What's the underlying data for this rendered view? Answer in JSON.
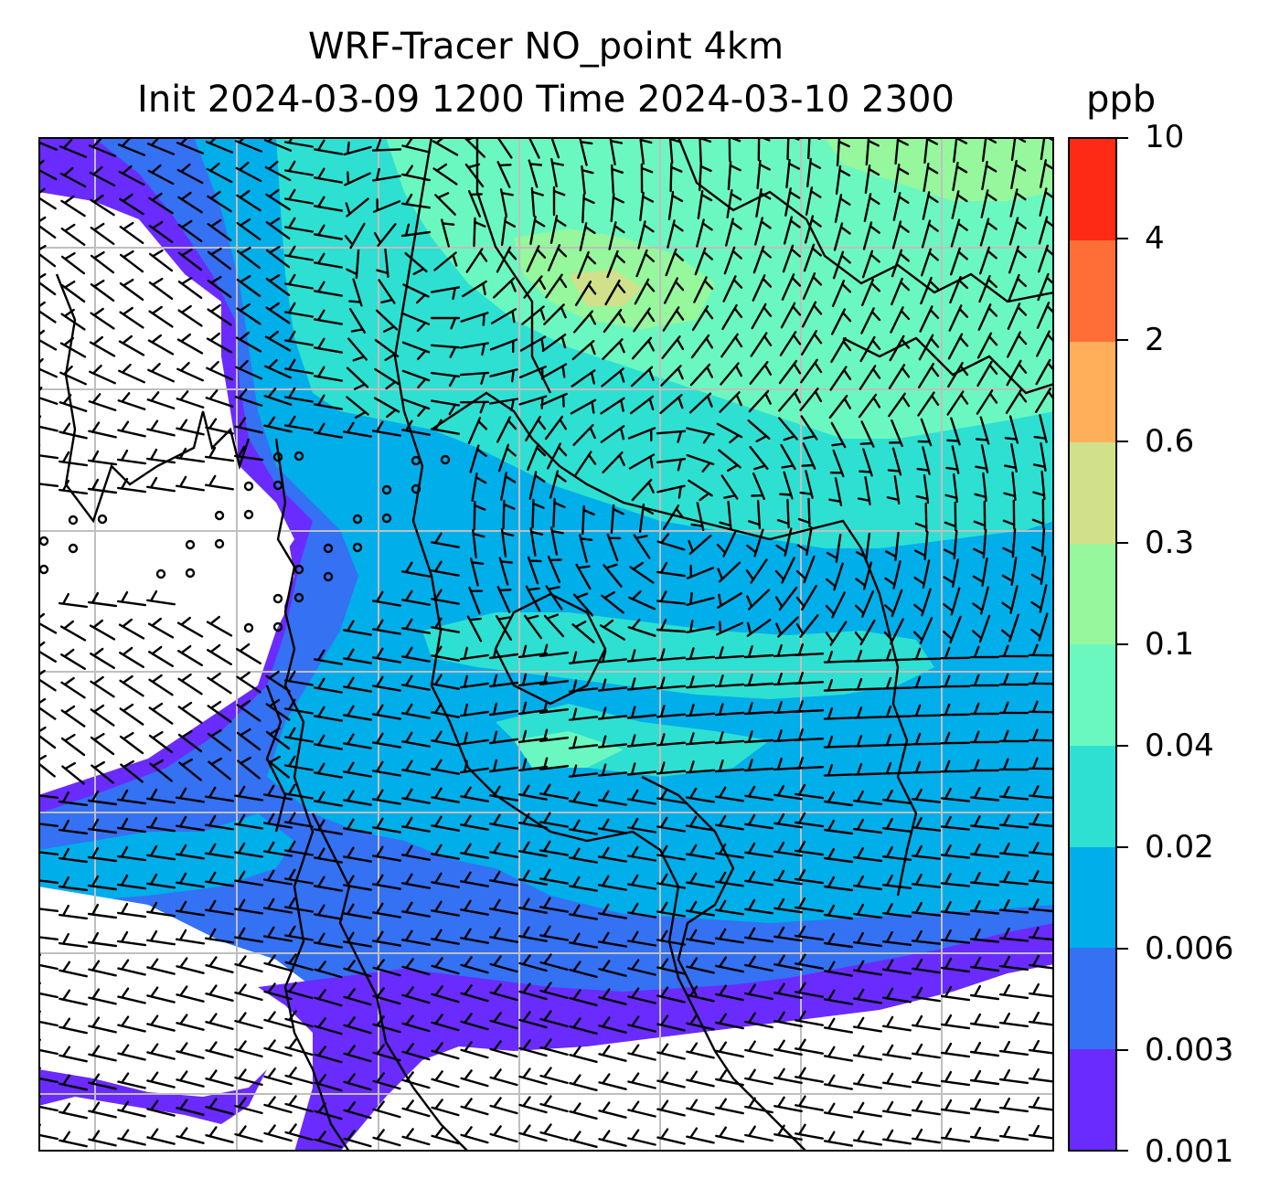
{
  "figure": {
    "title_line1": "WRF-Tracer NO_point 4km",
    "title_line2": "Init 2024-03-09 1200 Time 2024-03-10 2300",
    "units": "ppb"
  },
  "colorbar": {
    "levels": [
      "0.001",
      "0.003",
      "0.006",
      "0.02",
      "0.04",
      "0.1",
      "0.3",
      "0.6",
      "2",
      "4",
      "10"
    ],
    "colors": [
      "#6a2bff",
      "#3471f3",
      "#00aeea",
      "#2ee0d2",
      "#6bf8c0",
      "#96f79c",
      "#d1e08a",
      "#ffae5a",
      "#ff6e37",
      "#ff2a15"
    ]
  },
  "map": {
    "background": "#ffffff",
    "gridline_color": "#bfbfbf",
    "coastline_color": "#000000",
    "barb_color": "#000000",
    "calm_marker": "circle"
  }
}
